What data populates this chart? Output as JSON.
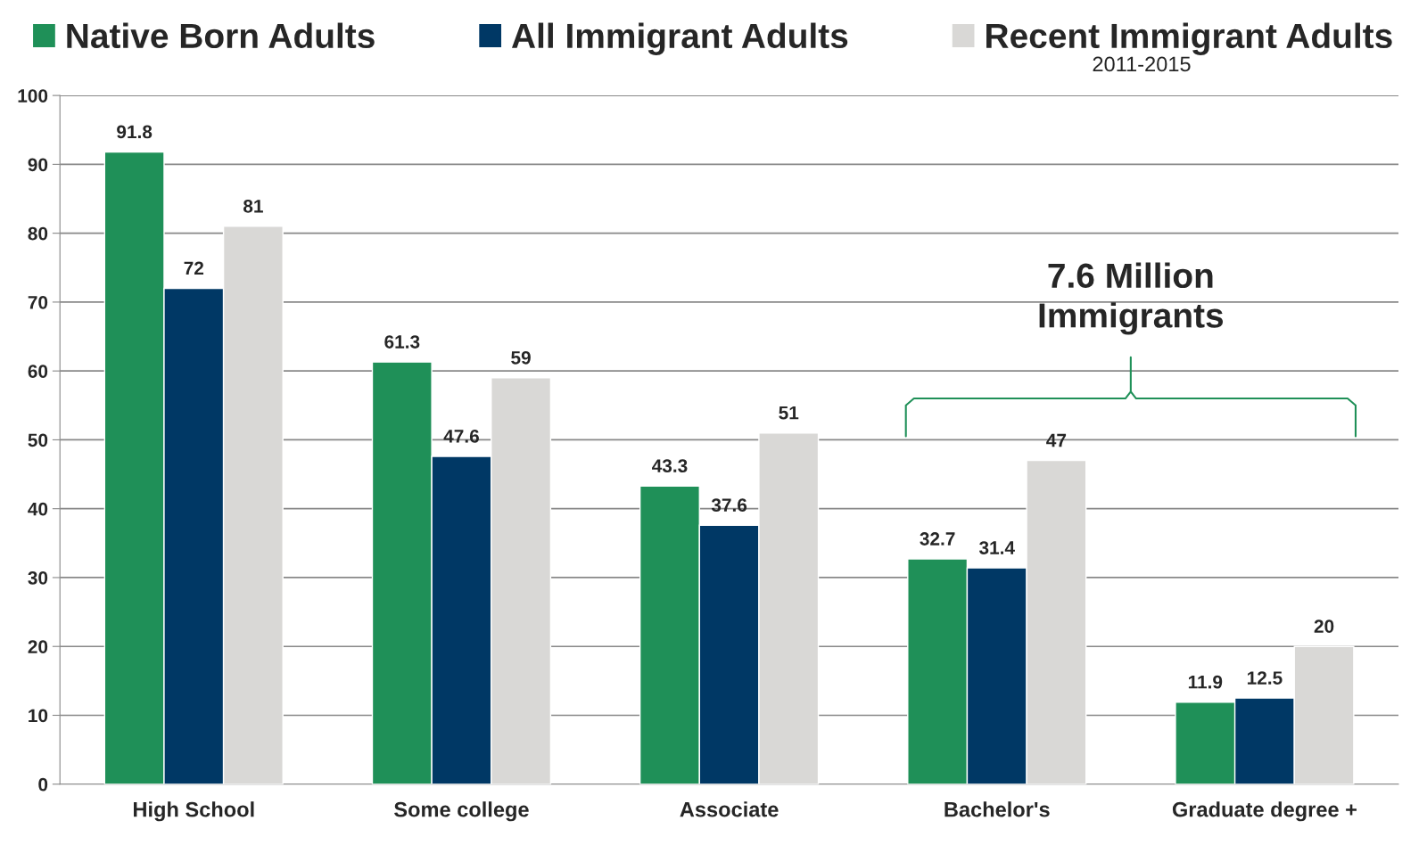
{
  "chart_data": {
    "type": "bar",
    "categories": [
      "High School",
      "Some college",
      "Associate",
      "Bachelor's",
      "Graduate degree +"
    ],
    "series": [
      {
        "name": "Native Born Adults",
        "color": "#1f9058",
        "values": [
          91.8,
          61.3,
          43.3,
          32.7,
          11.9
        ]
      },
      {
        "name": "All Immigrant Adults",
        "color": "#003865",
        "values": [
          72,
          47.6,
          37.6,
          31.4,
          12.5
        ]
      },
      {
        "name": "Recent Immigrant Adults",
        "color": "#d9d8d6",
        "values": [
          81,
          59,
          51,
          47,
          20
        ]
      }
    ],
    "ylim": [
      0,
      100
    ],
    "yticks": [
      0,
      10,
      20,
      30,
      40,
      50,
      60,
      70,
      80,
      90,
      100
    ],
    "grid": "y",
    "legend": "top",
    "data_labels": true,
    "annotations": [
      "2011-2015",
      "7.6 Million\nImmigrants"
    ]
  }
}
